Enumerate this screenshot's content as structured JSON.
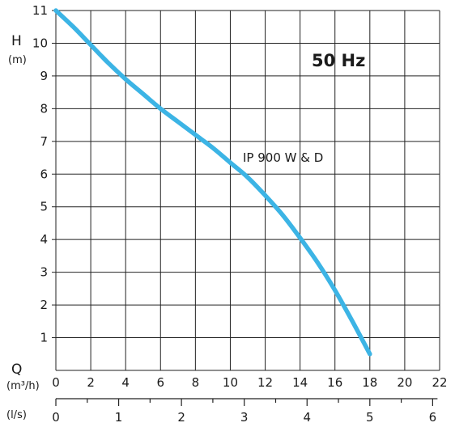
{
  "chart_data": {
    "type": "line",
    "frequency_label": "50 Hz",
    "y_axis": {
      "letter": "H",
      "unit": "(m)",
      "range": [
        0,
        11
      ],
      "ticks": [
        1,
        2,
        3,
        4,
        5,
        6,
        7,
        8,
        9,
        10,
        11
      ]
    },
    "x_axis": {
      "letter": "Q",
      "unit": "(m³/h)",
      "range": [
        0,
        22
      ],
      "ticks": [
        0,
        2,
        4,
        6,
        8,
        10,
        12,
        14,
        16,
        18,
        20,
        22
      ]
    },
    "x_axis_secondary": {
      "unit": "(l/s)",
      "ticks": [
        0,
        1,
        2,
        3,
        4,
        5,
        6
      ]
    },
    "grid": true,
    "series": [
      {
        "name": "IP 900 W & D",
        "color": "#3cb4e5",
        "x": [
          0,
          1,
          2,
          3,
          4,
          5,
          6,
          7,
          8,
          9,
          10,
          11,
          12,
          13,
          14,
          15,
          16,
          17,
          18
        ],
        "y": [
          11.0,
          10.5,
          9.95,
          9.4,
          8.9,
          8.45,
          8.0,
          7.6,
          7.2,
          6.8,
          6.35,
          5.9,
          5.35,
          4.75,
          4.05,
          3.3,
          2.45,
          1.5,
          0.5
        ]
      }
    ]
  }
}
